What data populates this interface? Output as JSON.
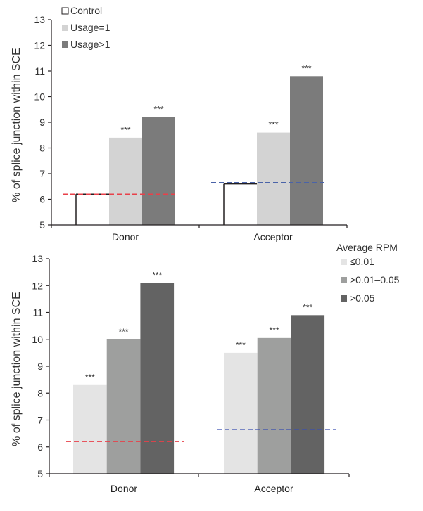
{
  "chart_data": [
    {
      "type": "bar",
      "id": "top",
      "title": "",
      "xlabel": "",
      "ylabel": "% of splice junction within SCE",
      "ylim": [
        5,
        13
      ],
      "yticks": [
        "5",
        "6",
        "7",
        "8",
        "9",
        "10",
        "11",
        "12",
        "13"
      ],
      "categories": [
        "Donor",
        "Acceptor"
      ],
      "legend_title": "",
      "legend_position": "top-left",
      "series": [
        {
          "name": "Control",
          "values": [
            6.2,
            6.6
          ],
          "color": "#ffffff",
          "outline": "#231f20"
        },
        {
          "name": "Usage=1",
          "values": [
            8.4,
            8.6
          ],
          "color": "#d3d3d3",
          "significance": [
            "***",
            "***"
          ]
        },
        {
          "name": "Usage>1",
          "values": [
            9.2,
            10.8
          ],
          "color": "#7b7b7b",
          "significance": [
            "***",
            "***"
          ]
        }
      ],
      "reference_lines": [
        {
          "category": "Donor",
          "value": 6.2,
          "color": "#e8404a",
          "style": "dashed"
        },
        {
          "category": "Acceptor",
          "value": 6.65,
          "color": "#4a63a8",
          "style": "dashed"
        }
      ],
      "grid": false
    },
    {
      "type": "bar",
      "id": "bottom",
      "title": "",
      "xlabel": "",
      "ylabel": "% of splice junction within SCE",
      "ylim": [
        5,
        13
      ],
      "yticks": [
        "5",
        "6",
        "7",
        "8",
        "9",
        "10",
        "11",
        "12",
        "13"
      ],
      "categories": [
        "Donor",
        "Acceptor"
      ],
      "legend_title": "Average RPM",
      "legend_position": "top-right",
      "series": [
        {
          "name": "≤0.01",
          "values": [
            8.3,
            9.5
          ],
          "color": "#e4e4e4",
          "significance": [
            "***",
            "***"
          ]
        },
        {
          "name": ">0.01–0.05",
          "values": [
            10.0,
            10.05
          ],
          "color": "#9e9f9e",
          "significance": [
            "***",
            "***"
          ]
        },
        {
          "name": ">0.05",
          "values": [
            12.1,
            10.9
          ],
          "color": "#636363",
          "significance": [
            "***",
            "***"
          ]
        }
      ],
      "reference_lines": [
        {
          "category": "Donor",
          "value": 6.2,
          "color": "#e8404a",
          "style": "dashed"
        },
        {
          "category": "Acceptor",
          "value": 6.65,
          "color": "#3a4fb0",
          "style": "dashed"
        }
      ],
      "grid": false
    }
  ]
}
